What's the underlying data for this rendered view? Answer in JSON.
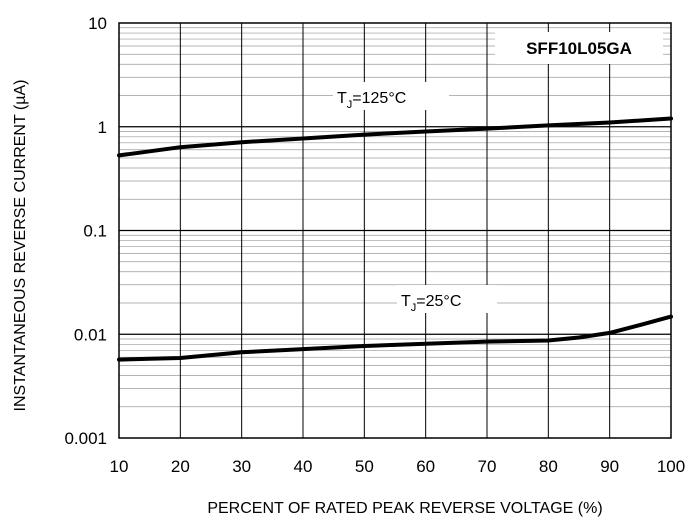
{
  "chart_data": {
    "type": "line",
    "part_number": "SFF10L05GA",
    "xlabel": "PERCENT OF RATED PEAK REVERSE VOLTAGE (%)",
    "ylabel": "INSTANTANEOUS REVERSE CURRENT (µA)",
    "x_ticks": [
      "10",
      "20",
      "30",
      "40",
      "50",
      "60",
      "70",
      "80",
      "90",
      "100"
    ],
    "y_ticks": [
      "0.001",
      "0.01",
      "0.1",
      "1",
      "10"
    ],
    "xlim": [
      10,
      100
    ],
    "ylim": [
      0.001,
      10
    ],
    "yscale": "log",
    "grid": true,
    "series": [
      {
        "name": "TJ=125°C",
        "label_main": "T",
        "label_sub": "J",
        "label_rest": "=125°C",
        "color": "#000000",
        "x": [
          10,
          15,
          20,
          25,
          30,
          40,
          50,
          60,
          70,
          80,
          90,
          100
        ],
        "y": [
          0.53,
          0.58,
          0.635,
          0.67,
          0.71,
          0.77,
          0.84,
          0.9,
          0.96,
          1.03,
          1.1,
          1.2
        ]
      },
      {
        "name": "TJ=25°C",
        "label_main": "T",
        "label_sub": "J",
        "label_rest": "=25°C",
        "color": "#000000",
        "x": [
          10,
          15,
          20,
          25,
          30,
          40,
          50,
          60,
          70,
          80,
          85,
          90,
          95,
          100
        ],
        "y": [
          0.0057,
          0.0058,
          0.0059,
          0.0063,
          0.0067,
          0.0072,
          0.0077,
          0.0081,
          0.0085,
          0.0087,
          0.0093,
          0.0103,
          0.0123,
          0.0148
        ]
      }
    ]
  }
}
